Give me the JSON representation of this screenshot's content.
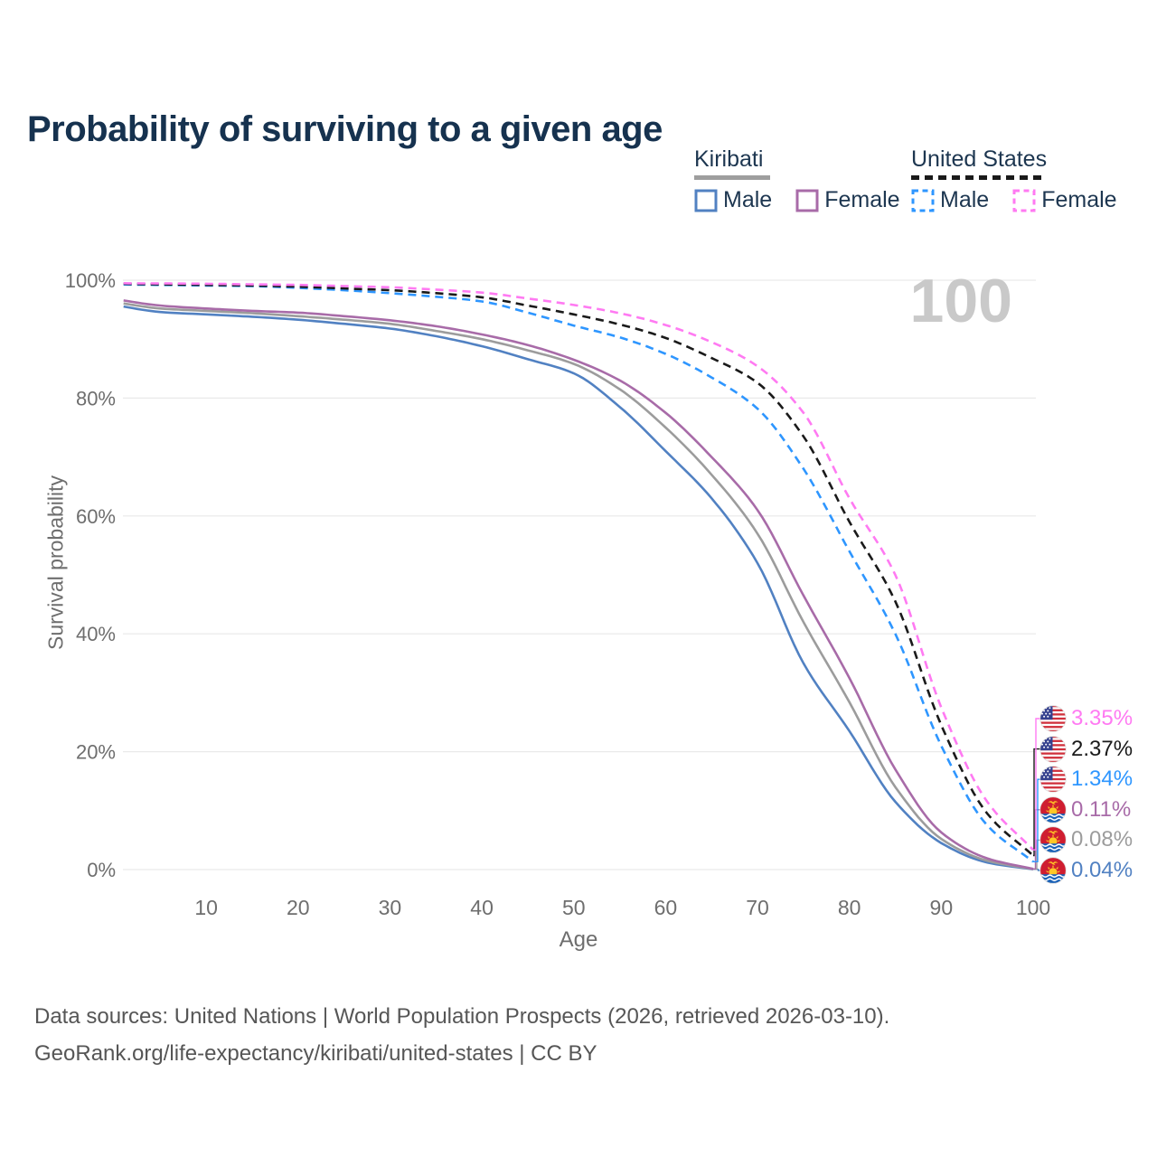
{
  "page": {
    "title": "Probability of surviving to a given age"
  },
  "legend": {
    "groups": [
      {
        "label": "Kiribati",
        "line_style": "solid",
        "underline_color": "#9e9e9e",
        "items": [
          {
            "label": "Male",
            "color": "#5181c2"
          },
          {
            "label": "Female",
            "color": "#a86ba8"
          }
        ]
      },
      {
        "label": "United States",
        "line_style": "dashed",
        "underline_color": "#1a1a1a",
        "items": [
          {
            "label": "Male",
            "color": "#2e96ff"
          },
          {
            "label": "Female",
            "color": "#ff7af2"
          }
        ]
      }
    ]
  },
  "watermark": "100",
  "footer": {
    "line1": "Data sources: United Nations | World Population Prospects (2026, retrieved 2026-03-10).",
    "line2": "GeoRank.org/life-expectancy/kiribati/united-states | CC BY"
  },
  "colors": {
    "title": "#16324f",
    "axis_text": "#6e6e6e",
    "grid": "#e9e9e9",
    "watermark": "#c9c9c9"
  },
  "chart_data": {
    "type": "line",
    "title": "Probability of surviving to a given age",
    "xlabel": "Age",
    "ylabel": "Survival probability",
    "xlim": [
      0,
      100
    ],
    "ylim": [
      0,
      100
    ],
    "grid": "horizontal-only",
    "legend_position": "top-right",
    "x_ticks": [
      10,
      20,
      30,
      40,
      50,
      60,
      70,
      80,
      90,
      100
    ],
    "y_ticks": [
      "0%",
      "20%",
      "40%",
      "60%",
      "80%",
      "100%"
    ],
    "x": [
      0,
      5,
      10,
      15,
      20,
      25,
      30,
      35,
      40,
      45,
      50,
      55,
      60,
      65,
      70,
      75,
      80,
      85,
      90,
      95,
      100
    ],
    "series": [
      {
        "name": "Kiribati Male",
        "style": "solid",
        "color": "#5181c2",
        "end_value": "0.04%",
        "label_row": 5,
        "values": [
          95.8,
          94.6,
          94.2,
          93.8,
          93.3,
          92.6,
          91.8,
          90.5,
          88.8,
          86.6,
          84.2,
          78.5,
          71.0,
          63.0,
          52.0,
          35.0,
          23.5,
          11.5,
          4.5,
          1.2,
          0.04
        ]
      },
      {
        "name": "Kiribati Both sexes",
        "style": "solid",
        "color": "#9c9c9c",
        "end_value": "0.08%",
        "label_row": 4,
        "values": [
          96.3,
          95.2,
          94.8,
          94.4,
          93.9,
          93.3,
          92.6,
          91.4,
          90.0,
          88.1,
          85.8,
          81.5,
          75.0,
          67.0,
          57.0,
          42.0,
          28.4,
          14.0,
          5.2,
          1.5,
          0.08
        ]
      },
      {
        "name": "Kiribati Female",
        "style": "solid",
        "color": "#a86ba8",
        "end_value": "0.11%",
        "label_row": 3,
        "values": [
          96.8,
          95.7,
          95.2,
          94.8,
          94.5,
          93.9,
          93.2,
          92.2,
          90.8,
          89.0,
          86.5,
          83.0,
          77.5,
          70.0,
          61.0,
          46.5,
          32.5,
          17.0,
          6.3,
          1.9,
          0.11
        ]
      },
      {
        "name": "United States Male",
        "style": "dashed",
        "color": "#2e96ff",
        "end_value": "1.34%",
        "label_row": 2,
        "values": [
          99.3,
          99.2,
          99.1,
          99.0,
          98.7,
          98.3,
          97.8,
          97.2,
          96.4,
          94.5,
          92.3,
          90.3,
          87.5,
          83.5,
          78.2,
          68.0,
          54.0,
          40.0,
          21.0,
          7.5,
          1.34
        ]
      },
      {
        "name": "United States Both sexes",
        "style": "dashed",
        "color": "#1a1a1a",
        "end_value": "2.37%",
        "label_row": 1,
        "values": [
          99.4,
          99.3,
          99.2,
          99.1,
          98.9,
          98.6,
          98.3,
          97.8,
          97.1,
          95.7,
          94.2,
          92.5,
          90.2,
          86.8,
          82.6,
          73.5,
          59.0,
          45.5,
          24.5,
          9.5,
          2.37
        ]
      },
      {
        "name": "United States Female",
        "style": "dashed",
        "color": "#ff7af2",
        "end_value": "3.35%",
        "label_row": 0,
        "values": [
          99.5,
          99.45,
          99.4,
          99.3,
          99.2,
          99.0,
          98.8,
          98.4,
          97.9,
          96.9,
          95.8,
          94.4,
          92.4,
          89.5,
          85.4,
          77.5,
          63.0,
          50.0,
          27.5,
          11.5,
          3.35
        ]
      }
    ],
    "end_labels": [
      {
        "flag": "us",
        "country": "United States",
        "text": "3.35%",
        "color": "#ff7af2"
      },
      {
        "flag": "us",
        "country": "United States",
        "text": "2.37%",
        "color": "#1a1a1a"
      },
      {
        "flag": "us",
        "country": "United States",
        "text": "1.34%",
        "color": "#2e96ff"
      },
      {
        "flag": "ki",
        "country": "Kiribati",
        "text": "0.11%",
        "color": "#a86ba8"
      },
      {
        "flag": "ki",
        "country": "Kiribati",
        "text": "0.08%",
        "color": "#9c9c9c"
      },
      {
        "flag": "ki",
        "country": "Kiribati",
        "text": "0.04%",
        "color": "#5181c2"
      }
    ]
  }
}
